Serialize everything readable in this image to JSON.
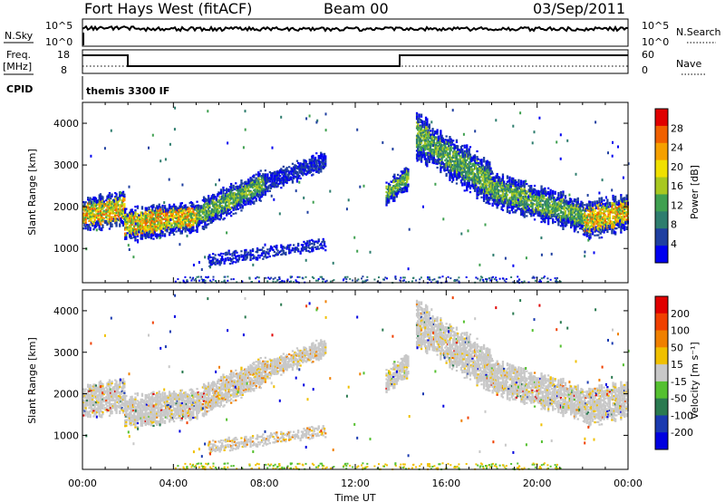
{
  "header": {
    "station": "Fort Hays West (fitACF)",
    "beam": "Beam 00",
    "date": "03/Sep/2011"
  },
  "top_panels": {
    "nsky_label": "N.Sky",
    "nsky_ticks": [
      "10^5",
      "10^0"
    ],
    "nsearch_label": "N.Search",
    "nsearch_ticks": [
      "10^5",
      "10^0"
    ],
    "freq_label": "Freq.",
    "freq_unit": "[MHz]",
    "freq_ticks": [
      "18",
      "8"
    ],
    "nave_label": "Nave",
    "nave_ticks": [
      "60",
      "0"
    ],
    "cpid_label": "CPID",
    "cpid_value": "themis 3300 IF"
  },
  "colors": {
    "power_scale": [
      "#0000f0",
      "#1f3fa0",
      "#2e7d6e",
      "#3fa050",
      "#a8c820",
      "#f0e000",
      "#f5a000",
      "#f06000",
      "#e00000"
    ],
    "velocity_scale": [
      "#0000e0",
      "#1a3ab0",
      "#2a7a50",
      "#55c030",
      "#c8c8c8",
      "#f0c000",
      "#f08000",
      "#f04000",
      "#e00000"
    ]
  },
  "chart_data": [
    {
      "type": "heatmap",
      "name": "power",
      "ylabel": "Slant Range [km]",
      "yticks": [
        "4000",
        "3000",
        "2000",
        "1000"
      ],
      "ylim": [
        180,
        4500
      ],
      "colorbar_label": "Power [dB]",
      "colorbar_ticks": [
        "28",
        "24",
        "20",
        "16",
        "12",
        "8",
        "4"
      ],
      "xlim": [
        "00:00",
        "24:00"
      ],
      "bands": [
        {
          "from": "00:00",
          "to": "01:50",
          "center_km": [
            1800,
            1950
          ],
          "width_km": 700,
          "level": "high"
        },
        {
          "from": "01:50",
          "to": "05:00",
          "center_km": [
            1550,
            1750
          ],
          "width_km": 650,
          "level": "high"
        },
        {
          "from": "05:00",
          "to": "08:00",
          "center_km": [
            1750,
            2550
          ],
          "width_km": 600,
          "level": "mid"
        },
        {
          "from": "08:00",
          "to": "10:40",
          "center_km": [
            2550,
            3100
          ],
          "width_km": 400,
          "level": "low"
        },
        {
          "from": "05:30",
          "to": "10:40",
          "center_km": [
            700,
            1100
          ],
          "width_km": 250,
          "level": "low"
        },
        {
          "from": "13:20",
          "to": "14:20",
          "center_km": [
            2300,
            2700
          ],
          "width_km": 500,
          "level": "mid"
        },
        {
          "from": "14:40",
          "to": "18:00",
          "center_km": [
            3700,
            2500
          ],
          "width_km": 900,
          "level": "mid"
        },
        {
          "from": "18:00",
          "to": "22:00",
          "center_km": [
            2400,
            1750
          ],
          "width_km": 700,
          "level": "mid"
        },
        {
          "from": "22:00",
          "to": "24:00",
          "center_km": [
            1650,
            1850
          ],
          "width_km": 750,
          "level": "high"
        }
      ]
    },
    {
      "type": "heatmap",
      "name": "velocity",
      "ylabel": "Slant Range [km]",
      "yticks": [
        "4000",
        "3000",
        "2000",
        "1000"
      ],
      "ylim": [
        180,
        4500
      ],
      "colorbar_label": "Velocity [m s⁻¹]",
      "colorbar_ticks": [
        "200",
        "100",
        "50",
        "15",
        "-15",
        "-50",
        "-100",
        "-200"
      ],
      "xlabel": "Time UT",
      "xticks": [
        "00:00",
        "04:00",
        "08:00",
        "12:00",
        "16:00",
        "20:00",
        "00:00"
      ],
      "xlim": [
        "00:00",
        "24:00"
      ]
    }
  ]
}
